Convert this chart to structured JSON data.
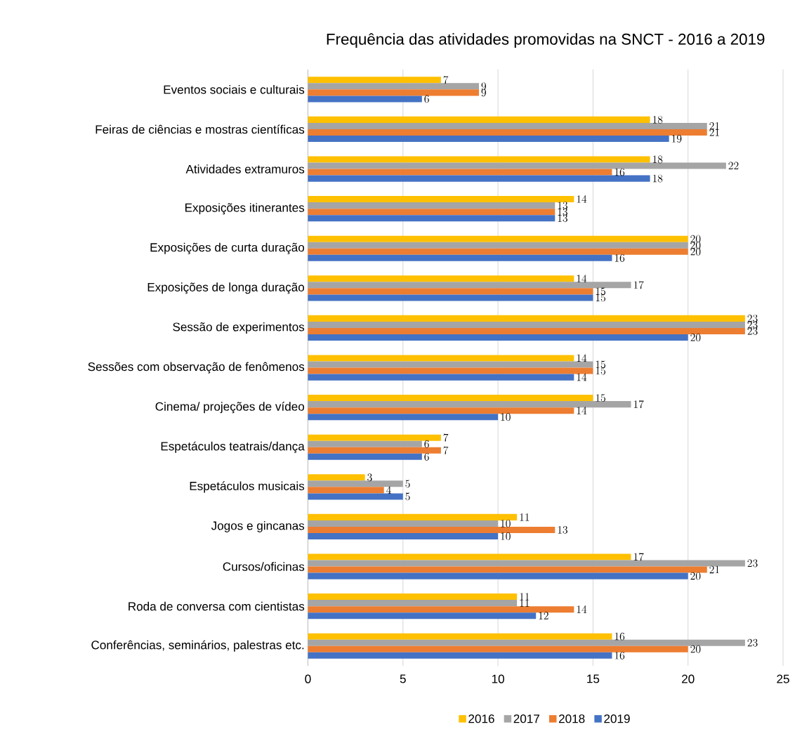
{
  "chart_data": {
    "type": "bar",
    "orientation": "horizontal",
    "title": "Frequência das atividades promovidas na SNCT - 2016 a 2019",
    "categories": [
      "Eventos sociais e culturais",
      "Feiras de ciências e mostras científicas",
      "Atividades extramuros",
      "Exposições itinerantes",
      "Exposições de curta duração",
      "Exposições de longa duração",
      "Sessão de experimentos",
      "Sessões com observação de fenômenos",
      "Cinema/ projeções de vídeo",
      "Espetáculos teatrais/dança",
      "Espetáculos musicais",
      "Jogos e gincanas",
      "Cursos/oficinas",
      "Roda de conversa com cientistas",
      "Conferências, seminários, palestras etc."
    ],
    "series": [
      {
        "name": "2016",
        "color": "#ffc000",
        "values": [
          7,
          18,
          18,
          14,
          20,
          14,
          23,
          14,
          15,
          7,
          3,
          11,
          17,
          11,
          16
        ]
      },
      {
        "name": "2017",
        "color": "#a5a5a5",
        "values": [
          9,
          21,
          22,
          13,
          20,
          17,
          23,
          15,
          17,
          6,
          5,
          10,
          23,
          11,
          23
        ]
      },
      {
        "name": "2018",
        "color": "#ed7d31",
        "values": [
          9,
          21,
          16,
          13,
          20,
          15,
          23,
          15,
          14,
          7,
          4,
          13,
          21,
          14,
          20
        ]
      },
      {
        "name": "2019",
        "color": "#4472c4",
        "values": [
          6,
          19,
          18,
          13,
          16,
          15,
          20,
          14,
          10,
          6,
          5,
          10,
          20,
          12,
          16
        ]
      }
    ],
    "xlim": [
      0,
      25
    ],
    "xticks": [
      0,
      5,
      10,
      15,
      20,
      25
    ],
    "grid": "x",
    "legend": "bottom",
    "data_labels": true
  }
}
